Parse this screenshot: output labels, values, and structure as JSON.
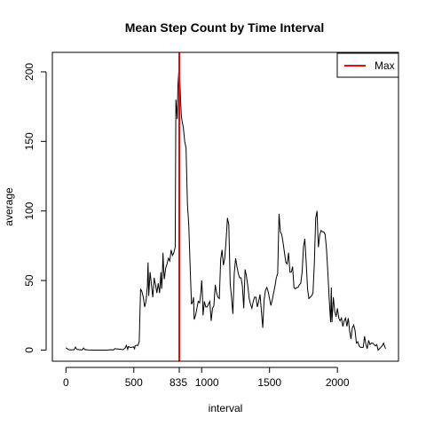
{
  "chart_data": {
    "type": "line",
    "title": "Mean Step Count by Time Interval",
    "xlabel": "interval",
    "ylabel": "average",
    "xlim": [
      -100,
      2450
    ],
    "ylim": [
      -8,
      214
    ],
    "x_ticks": [
      0,
      500,
      1000,
      1500,
      2000
    ],
    "x_tick_labels": [
      "0",
      "500",
      "1000",
      "1500",
      "2000"
    ],
    "y_ticks": [
      0,
      50,
      100,
      150,
      200
    ],
    "y_tick_labels": [
      "0",
      "50",
      "100",
      "150",
      "200"
    ],
    "grid": false,
    "legend": {
      "placement": "top-right",
      "entries": [
        {
          "label": "Max",
          "color": "#ff0000"
        }
      ]
    },
    "max_line": {
      "x": 835,
      "label": "835",
      "color": "#ff0000"
    },
    "series": [
      {
        "color": "#000000",
        "points": [
          [
            0,
            1.7
          ],
          [
            20,
            0.3
          ],
          [
            40,
            0.1
          ],
          [
            55,
            0.2
          ],
          [
            60,
            0.2
          ],
          [
            70,
            2.1
          ],
          [
            80,
            0.5
          ],
          [
            100,
            0.3
          ],
          [
            120,
            0.1
          ],
          [
            130,
            1.5
          ],
          [
            140,
            0.2
          ],
          [
            150,
            0.3
          ],
          [
            160,
            0.1
          ],
          [
            200,
            0.0
          ],
          [
            250,
            0.0
          ],
          [
            300,
            0.0
          ],
          [
            330,
            0.2
          ],
          [
            350,
            0.1
          ],
          [
            360,
            1.0
          ],
          [
            400,
            0.6
          ],
          [
            420,
            0.3
          ],
          [
            435,
            1.3
          ],
          [
            445,
            3.4
          ],
          [
            455,
            0.5
          ],
          [
            460,
            2.6
          ],
          [
            475,
            1.8
          ],
          [
            500,
            2.3
          ],
          [
            505,
            0.5
          ],
          [
            510,
            3.1
          ],
          [
            520,
            3.5
          ],
          [
            530,
            3.3
          ],
          [
            540,
            6.2
          ],
          [
            550,
            44
          ],
          [
            560,
            42
          ],
          [
            570,
            38
          ],
          [
            580,
            31
          ],
          [
            590,
            35
          ],
          [
            600,
            46
          ],
          [
            605,
            63
          ],
          [
            610,
            39
          ],
          [
            620,
            56
          ],
          [
            630,
            47
          ],
          [
            640,
            38
          ],
          [
            650,
            52
          ],
          [
            655,
            49
          ],
          [
            660,
            47
          ],
          [
            670,
            41
          ],
          [
            680,
            48
          ],
          [
            690,
            41
          ],
          [
            700,
            56
          ],
          [
            705,
            44
          ],
          [
            710,
            52
          ],
          [
            715,
            70
          ],
          [
            720,
            58
          ],
          [
            725,
            51
          ],
          [
            735,
            59
          ],
          [
            745,
            62
          ],
          [
            755,
            66
          ],
          [
            765,
            64
          ],
          [
            775,
            72
          ],
          [
            785,
            68
          ],
          [
            795,
            70
          ],
          [
            805,
            74
          ],
          [
            810,
            180
          ],
          [
            820,
            166
          ],
          [
            825,
            190
          ],
          [
            835,
            206
          ],
          [
            840,
            191
          ],
          [
            845,
            179
          ],
          [
            850,
            169
          ],
          [
            855,
            165
          ],
          [
            865,
            160
          ],
          [
            875,
            150
          ],
          [
            885,
            145
          ],
          [
            895,
            105
          ],
          [
            905,
            90
          ],
          [
            915,
            60
          ],
          [
            925,
            33
          ],
          [
            935,
            35
          ],
          [
            940,
            38
          ],
          [
            945,
            22
          ],
          [
            955,
            25
          ],
          [
            965,
            30
          ],
          [
            975,
            35
          ],
          [
            985,
            34
          ],
          [
            995,
            42
          ],
          [
            1000,
            50
          ],
          [
            1005,
            42
          ],
          [
            1010,
            25
          ],
          [
            1020,
            35
          ],
          [
            1030,
            31
          ],
          [
            1040,
            31
          ],
          [
            1050,
            33
          ],
          [
            1060,
            35
          ],
          [
            1070,
            21
          ],
          [
            1080,
            30
          ],
          [
            1090,
            32
          ],
          [
            1100,
            47
          ],
          [
            1110,
            41
          ],
          [
            1120,
            38
          ],
          [
            1130,
            37
          ],
          [
            1140,
            65
          ],
          [
            1150,
            72
          ],
          [
            1160,
            61
          ],
          [
            1170,
            66
          ],
          [
            1180,
            79
          ],
          [
            1190,
            95
          ],
          [
            1200,
            90
          ],
          [
            1210,
            48
          ],
          [
            1220,
            38
          ],
          [
            1230,
            26
          ],
          [
            1240,
            55
          ],
          [
            1250,
            66
          ],
          [
            1260,
            60
          ],
          [
            1270,
            55
          ],
          [
            1280,
            52
          ],
          [
            1290,
            52
          ],
          [
            1300,
            46
          ],
          [
            1310,
            30
          ],
          [
            1320,
            58
          ],
          [
            1330,
            53
          ],
          [
            1340,
            46
          ],
          [
            1350,
            37
          ],
          [
            1360,
            33
          ],
          [
            1370,
            30
          ],
          [
            1380,
            35
          ],
          [
            1390,
            38
          ],
          [
            1400,
            38
          ],
          [
            1410,
            31
          ],
          [
            1420,
            35
          ],
          [
            1430,
            40
          ],
          [
            1440,
            28
          ],
          [
            1450,
            16
          ],
          [
            1460,
            36
          ],
          [
            1470,
            43
          ],
          [
            1480,
            45
          ],
          [
            1490,
            42
          ],
          [
            1500,
            37
          ],
          [
            1510,
            32
          ],
          [
            1520,
            36
          ],
          [
            1530,
            41
          ],
          [
            1540,
            46
          ],
          [
            1550,
            52
          ],
          [
            1560,
            55
          ],
          [
            1570,
            98
          ],
          [
            1580,
            85
          ],
          [
            1590,
            83
          ],
          [
            1600,
            77
          ],
          [
            1610,
            70
          ],
          [
            1620,
            63
          ],
          [
            1630,
            62
          ],
          [
            1640,
            70
          ],
          [
            1650,
            56
          ],
          [
            1660,
            56
          ],
          [
            1670,
            60
          ],
          [
            1680,
            45
          ],
          [
            1690,
            44
          ],
          [
            1700,
            45
          ],
          [
            1710,
            45
          ],
          [
            1720,
            47
          ],
          [
            1730,
            48
          ],
          [
            1740,
            56
          ],
          [
            1750,
            74
          ],
          [
            1760,
            80
          ],
          [
            1770,
            63
          ],
          [
            1780,
            44
          ],
          [
            1790,
            37
          ],
          [
            1800,
            38
          ],
          [
            1810,
            39
          ],
          [
            1820,
            41
          ],
          [
            1830,
            62
          ],
          [
            1840,
            95
          ],
          [
            1850,
            100
          ],
          [
            1855,
            85
          ],
          [
            1860,
            74
          ],
          [
            1870,
            83
          ],
          [
            1880,
            86
          ],
          [
            1890,
            85
          ],
          [
            1900,
            85
          ],
          [
            1910,
            83
          ],
          [
            1920,
            72
          ],
          [
            1930,
            55
          ],
          [
            1940,
            36
          ],
          [
            1950,
            20
          ],
          [
            1955,
            45
          ],
          [
            1960,
            20
          ],
          [
            1970,
            38
          ],
          [
            1980,
            28
          ],
          [
            1990,
            24
          ],
          [
            2000,
            30
          ],
          [
            2010,
            23
          ],
          [
            2020,
            21
          ],
          [
            2030,
            23
          ],
          [
            2040,
            17
          ],
          [
            2050,
            21
          ],
          [
            2060,
            23
          ],
          [
            2070,
            17
          ],
          [
            2080,
            23
          ],
          [
            2090,
            14
          ],
          [
            2100,
            8
          ],
          [
            2110,
            16
          ],
          [
            2120,
            18
          ],
          [
            2130,
            14
          ],
          [
            2140,
            5
          ],
          [
            2150,
            6
          ],
          [
            2160,
            3
          ],
          [
            2170,
            2
          ],
          [
            2180,
            2
          ],
          [
            2190,
            2
          ],
          [
            2200,
            10
          ],
          [
            2210,
            4
          ],
          [
            2220,
            1
          ],
          [
            2230,
            7
          ],
          [
            2240,
            4
          ],
          [
            2250,
            5
          ],
          [
            2260,
            5
          ],
          [
            2270,
            4
          ],
          [
            2280,
            3
          ],
          [
            2290,
            4
          ],
          [
            2300,
            0
          ],
          [
            2310,
            1
          ],
          [
            2320,
            2
          ],
          [
            2330,
            3
          ],
          [
            2340,
            5
          ],
          [
            2350,
            2
          ],
          [
            2355,
            1
          ]
        ]
      }
    ]
  }
}
